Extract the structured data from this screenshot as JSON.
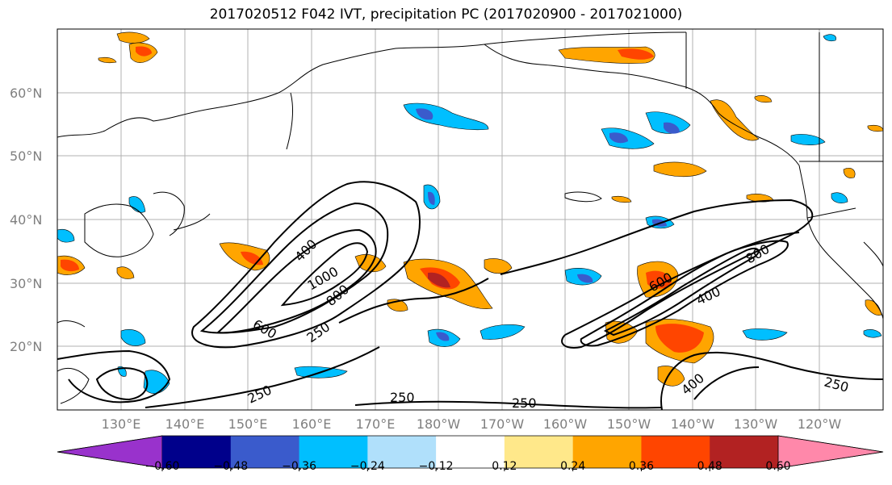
{
  "title": "2017020512 F042 IVT, precipitation PC (2017020900 - 2017021000)",
  "lat_labels": [
    "60°N",
    "50°N",
    "40°N",
    "30°N",
    "20°N"
  ],
  "lon_labels": [
    "130°E",
    "140°E",
    "150°E",
    "160°E",
    "170°E",
    "180°W",
    "170°W",
    "160°W",
    "150°W",
    "140°W",
    "130°W",
    "120°W"
  ],
  "colorbar": {
    "colors": [
      "#9932cc",
      "#00008b",
      "#3a5bcc",
      "#00bfff",
      "#b0e0fb",
      "#ffffff",
      "#ffe88a",
      "#ffa500",
      "#ff4500",
      "#b22222",
      "#ff88aa"
    ],
    "tick_labels": [
      "−0.60",
      "−0.48",
      "−0.36",
      "−0.24",
      "−0.12",
      "0.12",
      "0.24",
      "0.36",
      "0.48",
      "0.60"
    ]
  },
  "contour_labels": [
    "400",
    "1000",
    "800",
    "600",
    "250",
    "600",
    "800",
    "400",
    "250",
    "400",
    "250",
    "250",
    "250"
  ]
}
